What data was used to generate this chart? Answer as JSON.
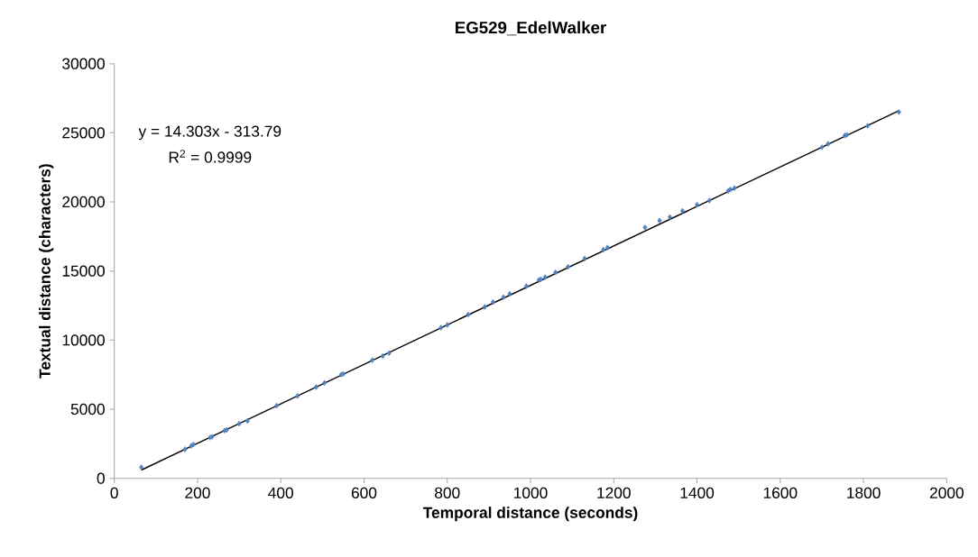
{
  "chart_data": {
    "type": "scatter",
    "title": "EG529_EdelWalker",
    "xlabel": "Temporal distance (seconds)",
    "ylabel": "Textual distance (characters)",
    "xlim": [
      0,
      2000
    ],
    "xticks": [
      0,
      200,
      400,
      600,
      800,
      1000,
      1200,
      1400,
      1600,
      1800,
      2000
    ],
    "ylim": [
      0,
      30000
    ],
    "yticks": [
      0,
      5000,
      10000,
      15000,
      20000,
      25000,
      30000
    ],
    "grid": false,
    "annotations": [
      "y = 14.303x - 313.79",
      "R$^{2}$ = 0.9999"
    ],
    "series": [
      {
        "marker": "diamond",
        "color": "#4f81bd",
        "x": [
          65,
          170,
          185,
          190,
          230,
          235,
          265,
          270,
          300,
          320,
          390,
          440,
          485,
          505,
          545,
          550,
          620,
          645,
          660,
          785,
          800,
          850,
          890,
          910,
          935,
          950,
          990,
          1020,
          1025,
          1035,
          1060,
          1090,
          1130,
          1175,
          1185,
          1275,
          1310,
          1335,
          1365,
          1400,
          1430,
          1475,
          1480,
          1490,
          1700,
          1715,
          1755,
          1760,
          1810,
          1885
        ],
        "values": [
          800,
          2100,
          2350,
          2450,
          2950,
          3000,
          3450,
          3500,
          3950,
          4150,
          5250,
          5950,
          6600,
          6900,
          7500,
          7550,
          8550,
          8850,
          9050,
          10900,
          11100,
          11850,
          12400,
          12750,
          13100,
          13350,
          13900,
          14350,
          14400,
          14550,
          14900,
          15300,
          15900,
          16550,
          16700,
          18150,
          18650,
          18900,
          19350,
          19800,
          20100,
          20800,
          20900,
          21000,
          23950,
          24200,
          24800,
          24850,
          25500,
          26500
        ]
      },
      {
        "type": "line",
        "marker": "none",
        "color": "#000000",
        "x": [
          65,
          1885
        ],
        "values": [
          600,
          26600
        ]
      }
    ]
  }
}
